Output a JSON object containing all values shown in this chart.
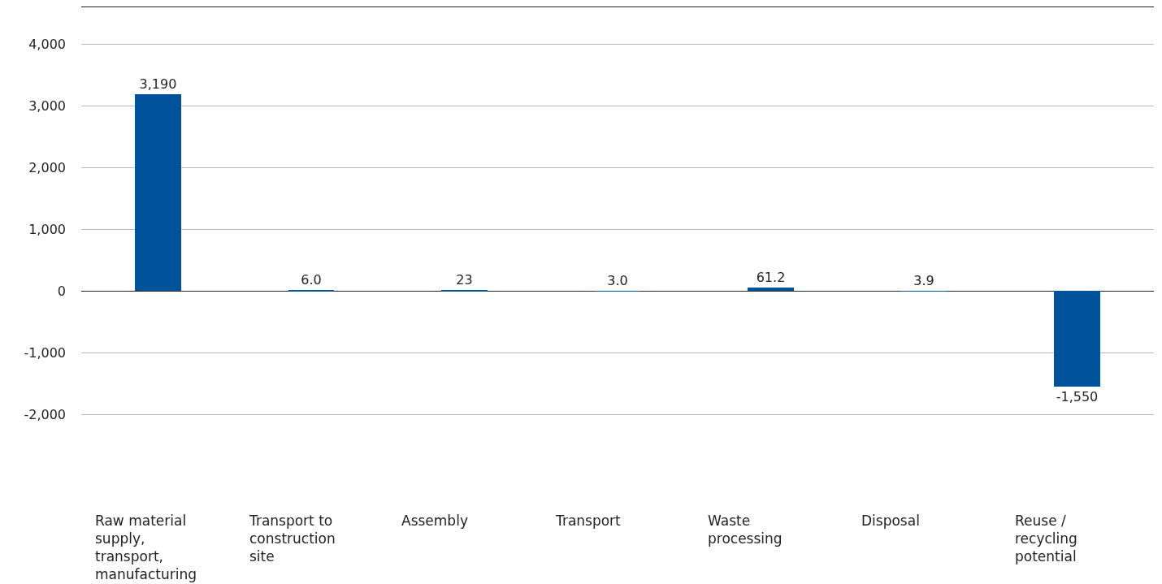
{
  "chart_data": {
    "type": "bar",
    "categories": [
      "Raw material supply, transport, manufacturing",
      "Transport to construction site",
      "Assembly",
      "Transport",
      "Waste processing",
      "Disposal",
      "Reuse / recycling potential"
    ],
    "values": [
      3190,
      6.0,
      23,
      3.0,
      61.2,
      3.9,
      -1550
    ],
    "value_labels": [
      "3,190",
      "6.0",
      "23",
      "3.0",
      "61.2",
      "3.9",
      "-1,550"
    ],
    "color": "#00529b",
    "ylim": [
      -4750,
      4600
    ],
    "yticks": [
      {
        "value": 4000,
        "label": "4,000"
      },
      {
        "value": 3000,
        "label": "3,000"
      },
      {
        "value": 2000,
        "label": "2,000"
      },
      {
        "value": 1000,
        "label": "1,000"
      },
      0,
      {
        "value": -1000,
        "label": "-1,000"
      },
      {
        "value": -2000,
        "label": "-2,000"
      }
    ],
    "grid": "y"
  }
}
